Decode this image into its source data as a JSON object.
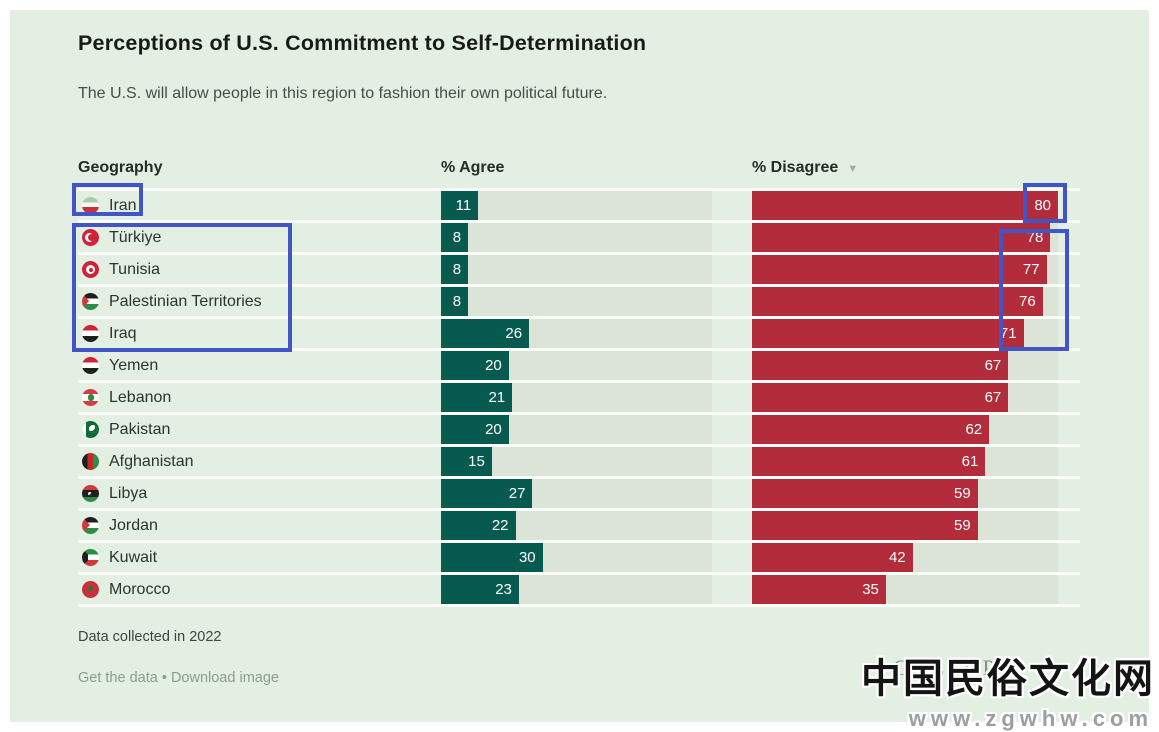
{
  "page": {
    "title": "Perceptions of U.S. Commitment to Self-Determination",
    "subtitle": "The U.S. will allow people in this region to fashion their own political future.",
    "footnote": "Data collected in 2022",
    "links": {
      "get_data": "Get the data",
      "bullet": "•",
      "download": "Download image"
    },
    "brand": {
      "name": "GALLUP",
      "registered": "®"
    },
    "icons": {
      "sort_desc": "▼"
    },
    "watermark": {
      "line1": "中国民俗文化网",
      "line2": "www.zgwhw.com"
    }
  },
  "chart_data": {
    "type": "bar",
    "title": "Perceptions of U.S. Commitment to Self-Determination",
    "subtitle": "The U.S. will allow people in this region to fashion their own political future.",
    "columns": [
      "Geography",
      "% Agree",
      "% Disagree"
    ],
    "sort": {
      "column": "% Disagree",
      "direction": "descending"
    },
    "axis_max": 80,
    "grid": false,
    "colors": {
      "agree_bar": "#075a50",
      "disagree_bar": "#b22c3b",
      "bar_track": "#dce3d7",
      "card_background": "#e3efe2",
      "annotation_box": "#4156c4"
    },
    "categories": [
      "Iran",
      "Türkiye",
      "Tunisia",
      "Palestinian Territories",
      "Iraq",
      "Yemen",
      "Lebanon",
      "Pakistan",
      "Afghanistan",
      "Libya",
      "Jordan",
      "Kuwait",
      "Morocco"
    ],
    "series": [
      {
        "name": "% Agree",
        "values": [
          11,
          8,
          8,
          8,
          26,
          20,
          21,
          20,
          15,
          27,
          22,
          30,
          23
        ]
      },
      {
        "name": "% Disagree",
        "values": [
          80,
          78,
          77,
          76,
          71,
          67,
          67,
          62,
          61,
          59,
          59,
          42,
          35
        ]
      }
    ],
    "rows": [
      {
        "geography": "Iran",
        "flag": "iran",
        "agree": 11,
        "disagree": 80
      },
      {
        "geography": "Türkiye",
        "flag": "turkiye",
        "agree": 8,
        "disagree": 78
      },
      {
        "geography": "Tunisia",
        "flag": "tunisia",
        "agree": 8,
        "disagree": 77
      },
      {
        "geography": "Palestinian Territories",
        "flag": "palestine",
        "agree": 8,
        "disagree": 76
      },
      {
        "geography": "Iraq",
        "flag": "iraq",
        "agree": 26,
        "disagree": 71
      },
      {
        "geography": "Yemen",
        "flag": "yemen",
        "agree": 20,
        "disagree": 67
      },
      {
        "geography": "Lebanon",
        "flag": "lebanon",
        "agree": 21,
        "disagree": 67
      },
      {
        "geography": "Pakistan",
        "flag": "pakistan",
        "agree": 20,
        "disagree": 62
      },
      {
        "geography": "Afghanistan",
        "flag": "afghanistan",
        "agree": 15,
        "disagree": 61
      },
      {
        "geography": "Libya",
        "flag": "libya",
        "agree": 27,
        "disagree": 59
      },
      {
        "geography": "Jordan",
        "flag": "jordan",
        "agree": 22,
        "disagree": 59
      },
      {
        "geography": "Kuwait",
        "flag": "kuwait",
        "agree": 30,
        "disagree": 42
      },
      {
        "geography": "Morocco",
        "flag": "morocco",
        "agree": 23,
        "disagree": 35
      }
    ]
  }
}
